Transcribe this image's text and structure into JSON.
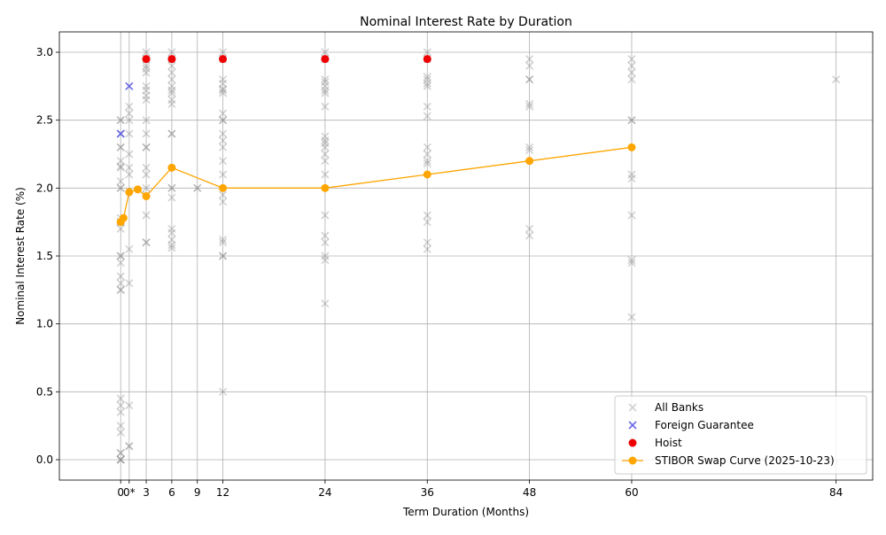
{
  "chart_data": {
    "type": "scatter",
    "title": "Nominal Interest Rate by Duration",
    "xlabel": "Term Duration (Months)",
    "ylabel": "Nominal Interest Rate (%)",
    "xlim": [
      -7.2,
      88.3
    ],
    "ylim": [
      -0.15,
      3.15
    ],
    "x_ticks": [
      {
        "value": 0,
        "label": "0"
      },
      {
        "value": 1,
        "label": "0*"
      },
      {
        "value": 3,
        "label": "3"
      },
      {
        "value": 6,
        "label": "6"
      },
      {
        "value": 9,
        "label": "9"
      },
      {
        "value": 12,
        "label": "12"
      },
      {
        "value": 24,
        "label": "24"
      },
      {
        "value": 36,
        "label": "36"
      },
      {
        "value": 48,
        "label": "48"
      },
      {
        "value": 60,
        "label": "60"
      },
      {
        "value": 84,
        "label": "84"
      }
    ],
    "y_ticks": [
      0.0,
      0.5,
      1.0,
      1.5,
      2.0,
      2.5,
      3.0
    ],
    "y_tick_labels": [
      "0.0",
      "0.5",
      "1.0",
      "1.5",
      "2.0",
      "2.5",
      "3.0"
    ],
    "grid": true,
    "legend_position": "lower-right",
    "series": [
      {
        "name": "All Banks",
        "marker": "x",
        "color": "#808080",
        "opacity": 0.35,
        "points": [
          [
            0,
            2.5
          ],
          [
            0,
            2.5
          ],
          [
            0,
            2.4
          ],
          [
            0,
            2.3
          ],
          [
            0,
            2.3
          ],
          [
            0,
            2.2
          ],
          [
            0,
            2.16
          ],
          [
            0,
            2.15
          ],
          [
            0,
            2.05
          ],
          [
            0,
            2.0
          ],
          [
            0,
            2.0
          ],
          [
            0,
            1.78
          ],
          [
            0,
            1.75
          ],
          [
            0,
            1.75
          ],
          [
            0,
            1.7
          ],
          [
            0,
            1.5
          ],
          [
            0,
            1.5
          ],
          [
            0,
            1.45
          ],
          [
            0,
            1.35
          ],
          [
            0,
            1.3
          ],
          [
            0,
            1.25
          ],
          [
            0,
            1.25
          ],
          [
            0,
            0.45
          ],
          [
            0,
            0.4
          ],
          [
            0,
            0.35
          ],
          [
            0,
            0.25
          ],
          [
            0,
            0.2
          ],
          [
            0,
            0.05
          ],
          [
            0,
            0.05
          ],
          [
            0,
            0.0
          ],
          [
            0,
            0.0
          ],
          [
            0,
            0.0
          ],
          [
            1,
            2.6
          ],
          [
            1,
            2.55
          ],
          [
            1,
            2.5
          ],
          [
            1,
            2.4
          ],
          [
            1,
            2.25
          ],
          [
            1,
            2.15
          ],
          [
            1,
            2.1
          ],
          [
            1,
            1.55
          ],
          [
            1,
            1.3
          ],
          [
            1,
            0.4
          ],
          [
            1,
            0.1
          ],
          [
            1,
            0.1
          ],
          [
            3,
            3.0
          ],
          [
            3,
            2.95
          ],
          [
            3,
            2.9
          ],
          [
            3,
            2.88
          ],
          [
            3,
            2.85
          ],
          [
            3,
            2.75
          ],
          [
            3,
            2.72
          ],
          [
            3,
            2.68
          ],
          [
            3,
            2.65
          ],
          [
            3,
            2.5
          ],
          [
            3,
            2.4
          ],
          [
            3,
            2.3
          ],
          [
            3,
            2.3
          ],
          [
            3,
            2.15
          ],
          [
            3,
            2.1
          ],
          [
            3,
            2.0
          ],
          [
            3,
            1.95
          ],
          [
            3,
            1.8
          ],
          [
            3,
            1.6
          ],
          [
            3,
            1.6
          ],
          [
            6,
            3.0
          ],
          [
            6,
            2.95
          ],
          [
            6,
            2.9
          ],
          [
            6,
            2.85
          ],
          [
            6,
            2.8
          ],
          [
            6,
            2.75
          ],
          [
            6,
            2.72
          ],
          [
            6,
            2.7
          ],
          [
            6,
            2.65
          ],
          [
            6,
            2.62
          ],
          [
            6,
            2.4
          ],
          [
            6,
            2.4
          ],
          [
            6,
            2.0
          ],
          [
            6,
            2.0
          ],
          [
            6,
            1.93
          ],
          [
            6,
            1.7
          ],
          [
            6,
            1.67
          ],
          [
            6,
            1.62
          ],
          [
            6,
            1.58
          ],
          [
            6,
            1.56
          ],
          [
            9,
            2.0
          ],
          [
            9,
            2.0
          ],
          [
            12,
            3.0
          ],
          [
            12,
            2.95
          ],
          [
            12,
            2.8
          ],
          [
            12,
            2.77
          ],
          [
            12,
            2.73
          ],
          [
            12,
            2.72
          ],
          [
            12,
            2.7
          ],
          [
            12,
            2.55
          ],
          [
            12,
            2.5
          ],
          [
            12,
            2.5
          ],
          [
            12,
            2.4
          ],
          [
            12,
            2.35
          ],
          [
            12,
            2.3
          ],
          [
            12,
            2.2
          ],
          [
            12,
            2.1
          ],
          [
            12,
            1.95
          ],
          [
            12,
            1.9
          ],
          [
            12,
            1.62
          ],
          [
            12,
            1.6
          ],
          [
            12,
            1.5
          ],
          [
            12,
            1.5
          ],
          [
            12,
            0.5
          ],
          [
            24,
            3.0
          ],
          [
            24,
            2.95
          ],
          [
            24,
            2.8
          ],
          [
            24,
            2.78
          ],
          [
            24,
            2.75
          ],
          [
            24,
            2.72
          ],
          [
            24,
            2.7
          ],
          [
            24,
            2.6
          ],
          [
            24,
            2.38
          ],
          [
            24,
            2.35
          ],
          [
            24,
            2.33
          ],
          [
            24,
            2.3
          ],
          [
            24,
            2.25
          ],
          [
            24,
            2.2
          ],
          [
            24,
            2.1
          ],
          [
            24,
            1.8
          ],
          [
            24,
            1.65
          ],
          [
            24,
            1.6
          ],
          [
            24,
            1.5
          ],
          [
            24,
            1.47
          ],
          [
            24,
            1.15
          ],
          [
            36,
            3.0
          ],
          [
            36,
            2.95
          ],
          [
            36,
            2.82
          ],
          [
            36,
            2.8
          ],
          [
            36,
            2.77
          ],
          [
            36,
            2.75
          ],
          [
            36,
            2.6
          ],
          [
            36,
            2.53
          ],
          [
            36,
            2.3
          ],
          [
            36,
            2.25
          ],
          [
            36,
            2.2
          ],
          [
            36,
            2.18
          ],
          [
            36,
            1.8
          ],
          [
            36,
            1.75
          ],
          [
            36,
            1.6
          ],
          [
            36,
            1.55
          ],
          [
            48,
            2.95
          ],
          [
            48,
            2.9
          ],
          [
            48,
            2.8
          ],
          [
            48,
            2.8
          ],
          [
            48,
            2.62
          ],
          [
            48,
            2.6
          ],
          [
            48,
            2.3
          ],
          [
            48,
            2.28
          ],
          [
            48,
            1.7
          ],
          [
            48,
            1.65
          ],
          [
            60,
            2.95
          ],
          [
            60,
            2.9
          ],
          [
            60,
            2.85
          ],
          [
            60,
            2.8
          ],
          [
            60,
            2.5
          ],
          [
            60,
            2.5
          ],
          [
            60,
            2.1
          ],
          [
            60,
            2.07
          ],
          [
            60,
            1.8
          ],
          [
            60,
            1.47
          ],
          [
            60,
            1.45
          ],
          [
            60,
            1.05
          ],
          [
            84,
            2.8
          ]
        ]
      },
      {
        "name": "Foreign Guarantee",
        "marker": "x",
        "color": "#5a5ae6",
        "opacity": 0.9,
        "points": [
          [
            1,
            2.75
          ],
          [
            0,
            2.4
          ]
        ]
      },
      {
        "name": "Hoist",
        "marker": "o",
        "color": "#ee0000",
        "opacity": 1,
        "points": [
          [
            3,
            2.95
          ],
          [
            6,
            2.95
          ],
          [
            12,
            2.95
          ],
          [
            24,
            2.95
          ],
          [
            36,
            2.95
          ]
        ]
      },
      {
        "name": "STIBOR Swap Curve (2025-10-23)",
        "marker": "o-line",
        "color": "#ffa500",
        "opacity": 1,
        "points": [
          [
            0,
            1.75
          ],
          [
            0.33,
            1.78
          ],
          [
            1,
            1.97
          ],
          [
            2,
            1.99
          ],
          [
            3,
            1.94
          ],
          [
            6,
            2.15
          ],
          [
            12,
            2.0
          ],
          [
            24,
            2.0
          ],
          [
            36,
            2.1
          ],
          [
            48,
            2.2
          ],
          [
            60,
            2.3
          ]
        ]
      }
    ]
  }
}
